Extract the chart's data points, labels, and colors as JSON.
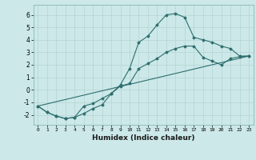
{
  "title": "",
  "xlabel": "Humidex (Indice chaleur)",
  "ylabel": "",
  "background_color": "#cce8e8",
  "line_color": "#2e6e6e",
  "xlim": [
    -0.5,
    23.5
  ],
  "ylim": [
    -2.8,
    6.8
  ],
  "xticks": [
    0,
    1,
    2,
    3,
    4,
    5,
    6,
    7,
    8,
    9,
    10,
    11,
    12,
    13,
    14,
    15,
    16,
    17,
    18,
    19,
    20,
    21,
    22,
    23
  ],
  "yticks": [
    -2,
    -1,
    0,
    1,
    2,
    3,
    4,
    5,
    6
  ],
  "grid_color": "#b8d8d8",
  "line1_x": [
    0,
    1,
    2,
    3,
    4,
    5,
    6,
    7,
    8,
    9,
    10,
    11,
    12,
    13,
    14,
    15,
    16,
    17,
    18,
    19,
    20,
    21,
    22,
    23
  ],
  "line1_y": [
    -1.3,
    -1.8,
    -2.1,
    -2.3,
    -2.2,
    -1.9,
    -1.5,
    -1.2,
    -0.3,
    0.4,
    1.7,
    3.8,
    4.3,
    5.2,
    6.0,
    6.1,
    5.8,
    4.2,
    4.0,
    3.8,
    3.5,
    3.3,
    2.7,
    2.7
  ],
  "line2_x": [
    0,
    1,
    2,
    3,
    4,
    5,
    6,
    7,
    8,
    9,
    10,
    11,
    12,
    13,
    14,
    15,
    16,
    17,
    18,
    19,
    20,
    21,
    22,
    23
  ],
  "line2_y": [
    -1.3,
    -1.8,
    -2.1,
    -2.3,
    -2.2,
    -1.3,
    -1.1,
    -0.7,
    -0.3,
    0.3,
    0.5,
    1.7,
    2.1,
    2.5,
    3.0,
    3.3,
    3.5,
    3.5,
    2.6,
    2.3,
    2.0,
    2.5,
    2.65,
    2.7
  ],
  "line3_x": [
    0,
    23
  ],
  "line3_y": [
    -1.3,
    2.7
  ]
}
